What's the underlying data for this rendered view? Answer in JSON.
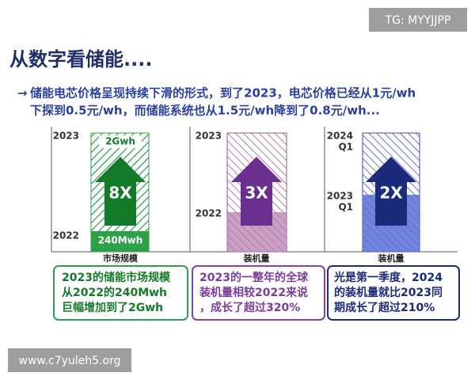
{
  "watermark_top": "TG: MYYJJPP",
  "title": "从数字看储能....",
  "bullet": {
    "arrow": "→",
    "lines": [
      "储能电芯价格呈现持续下滑的形式，到了2023，电芯价格已经从1元/wh",
      "下探到0.5元/wh，而储能系统也从1.5元/wh降到了0.8元/wh..."
    ]
  },
  "panels": [
    {
      "top_label": [
        "2023"
      ],
      "top_value": "2Gwh",
      "multiplier": "8X",
      "bottom_label": [
        "2022"
      ],
      "bottom_value": "240Mwh",
      "axis_label": "市场规模",
      "note_lines": [
        "2023的储能市场规模",
        "从2022的240Mwh",
        "巨幅增加到了2Gwh"
      ]
    },
    {
      "top_label": [
        "2023"
      ],
      "multiplier": "3X",
      "bottom_label": [
        "2022"
      ],
      "axis_label": "装机量",
      "note_lines": [
        "2023的一整年的全球",
        "装机量相较2022来说",
        "，成长了超过320%"
      ]
    },
    {
      "top_label": [
        "2024",
        "Q1"
      ],
      "multiplier": "2X",
      "bottom_label": [
        "2023",
        "Q1"
      ],
      "axis_label": "装机量",
      "note_lines": [
        "光是第一季度，2024",
        "的装机量就比2023同",
        "期成长了超过210%"
      ]
    }
  ],
  "watermark_bottom": "www.c7yuleh5.org"
}
